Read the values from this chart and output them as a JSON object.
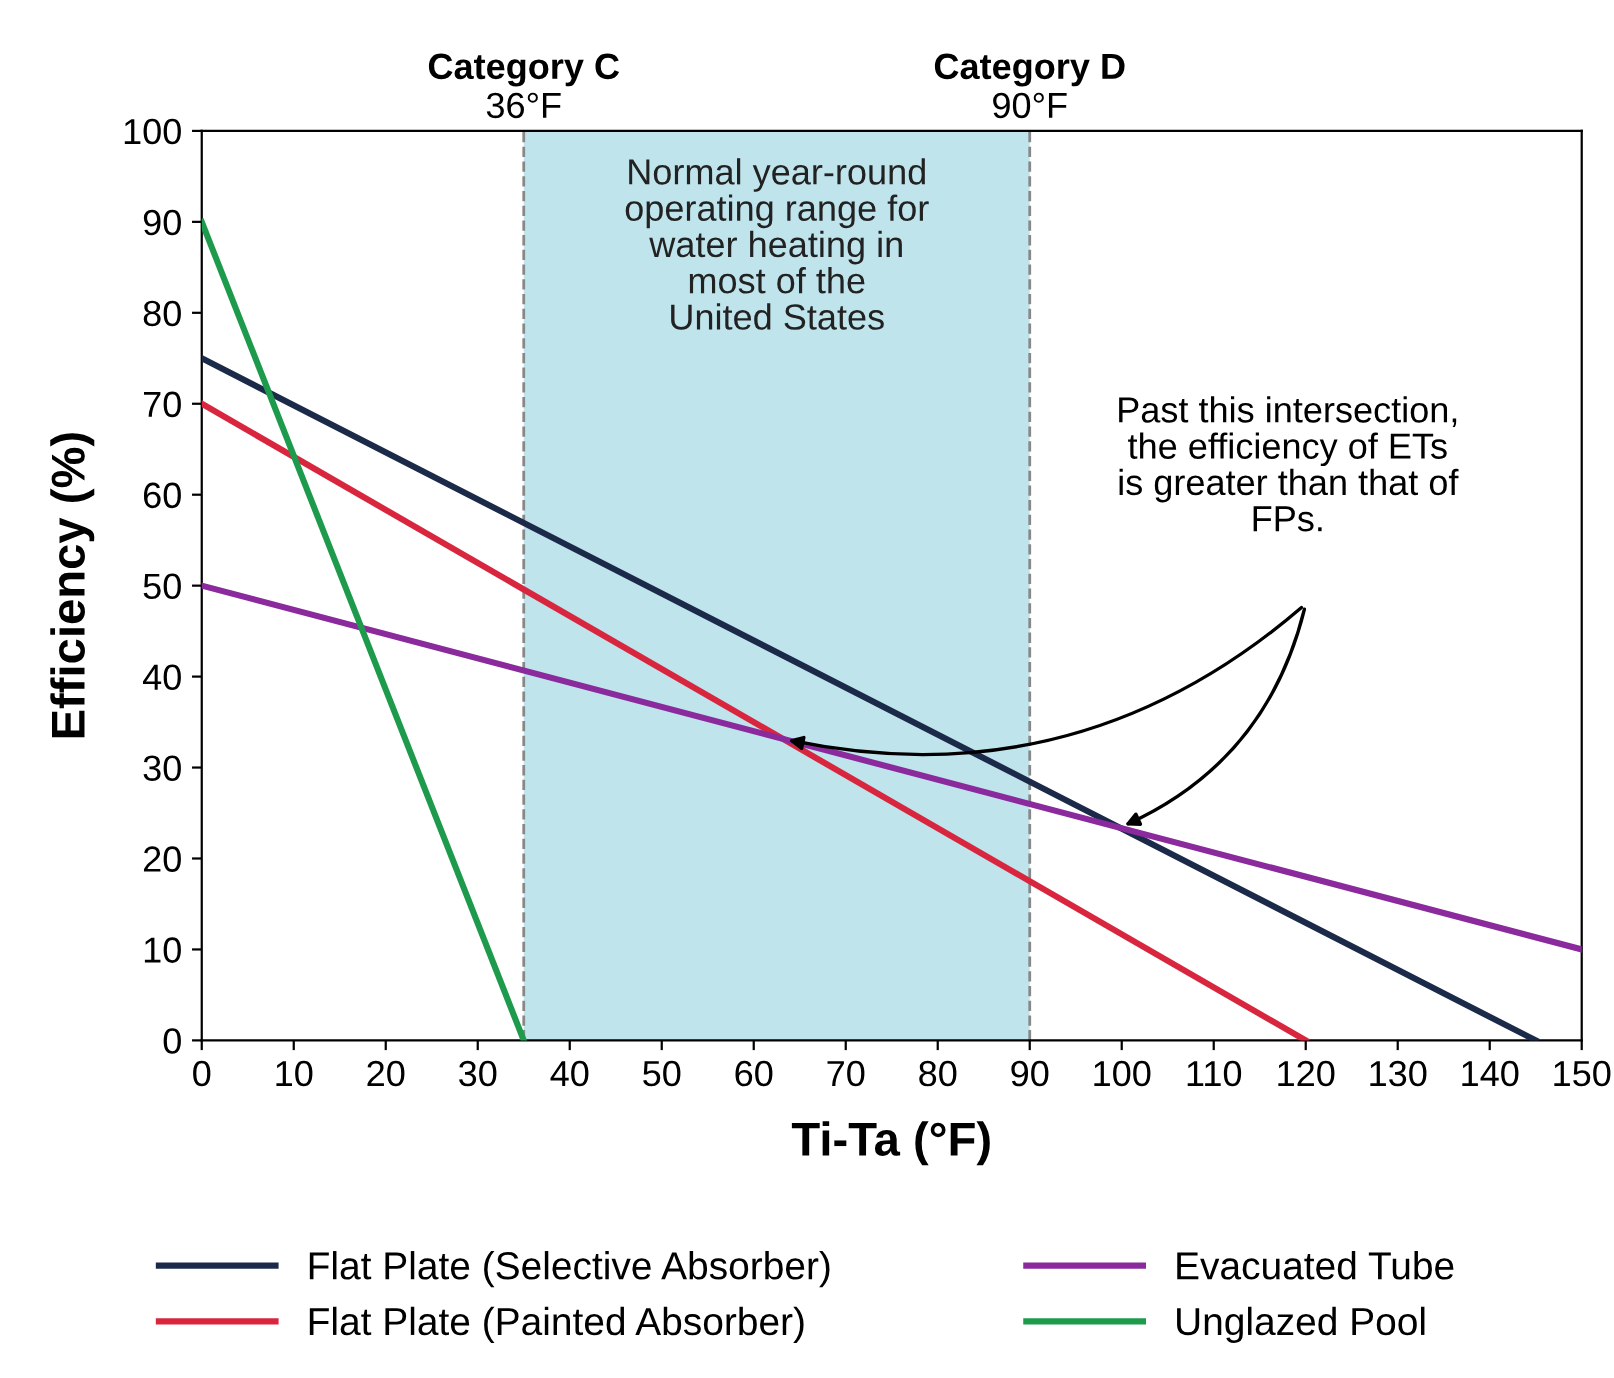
{
  "chart_data": {
    "type": "line",
    "xlabel": "Ti-Ta (°F)",
    "ylabel": "Efficiency (%)",
    "series": [
      {
        "name": "Flat Plate (Selective Absorber)",
        "color": "#1c2a4a",
        "x": [
          0,
          145
        ],
        "values": [
          75,
          0
        ]
      },
      {
        "name": "Flat Plate (Painted Absorber)",
        "color": "#d9263f",
        "x": [
          0,
          120
        ],
        "values": [
          70,
          0
        ]
      },
      {
        "name": "Evacuated Tube",
        "color": "#8a2a9c",
        "x": [
          0,
          150
        ],
        "values": [
          50,
          10
        ]
      },
      {
        "name": "Unglazed Pool",
        "color": "#1d9a4c",
        "x": [
          0,
          35
        ],
        "values": [
          90,
          0
        ]
      }
    ],
    "xlim": [
      0,
      150
    ],
    "ylim": [
      0,
      100
    ],
    "xticks": [
      0,
      10,
      20,
      30,
      40,
      50,
      60,
      70,
      80,
      90,
      100,
      110,
      120,
      130,
      140,
      150
    ],
    "yticks": [
      0,
      10,
      20,
      30,
      40,
      50,
      60,
      70,
      80,
      90,
      100
    ],
    "bands": [
      {
        "axis": "x",
        "from": 35,
        "to": 90,
        "label": "Normal year-round\noperating range for\nwater heating in\nmost of the\nUnited States",
        "color": "#bfe4ec"
      }
    ],
    "ref_lines": [
      {
        "axis": "x",
        "value": 35,
        "label": "Category C\n36°F",
        "color": "#888888",
        "line_style": "dashed"
      },
      {
        "axis": "x",
        "value": 90,
        "label": "Category D\n90°F",
        "color": "#888888",
        "line_style": "dashed"
      }
    ],
    "annotations": [
      "Past this intersection,\nthe efficiency of ETs\nis greater than that of\nFPs."
    ],
    "grid": false,
    "legend": "bottom",
    "marker": "none",
    "line_style": "solid"
  }
}
